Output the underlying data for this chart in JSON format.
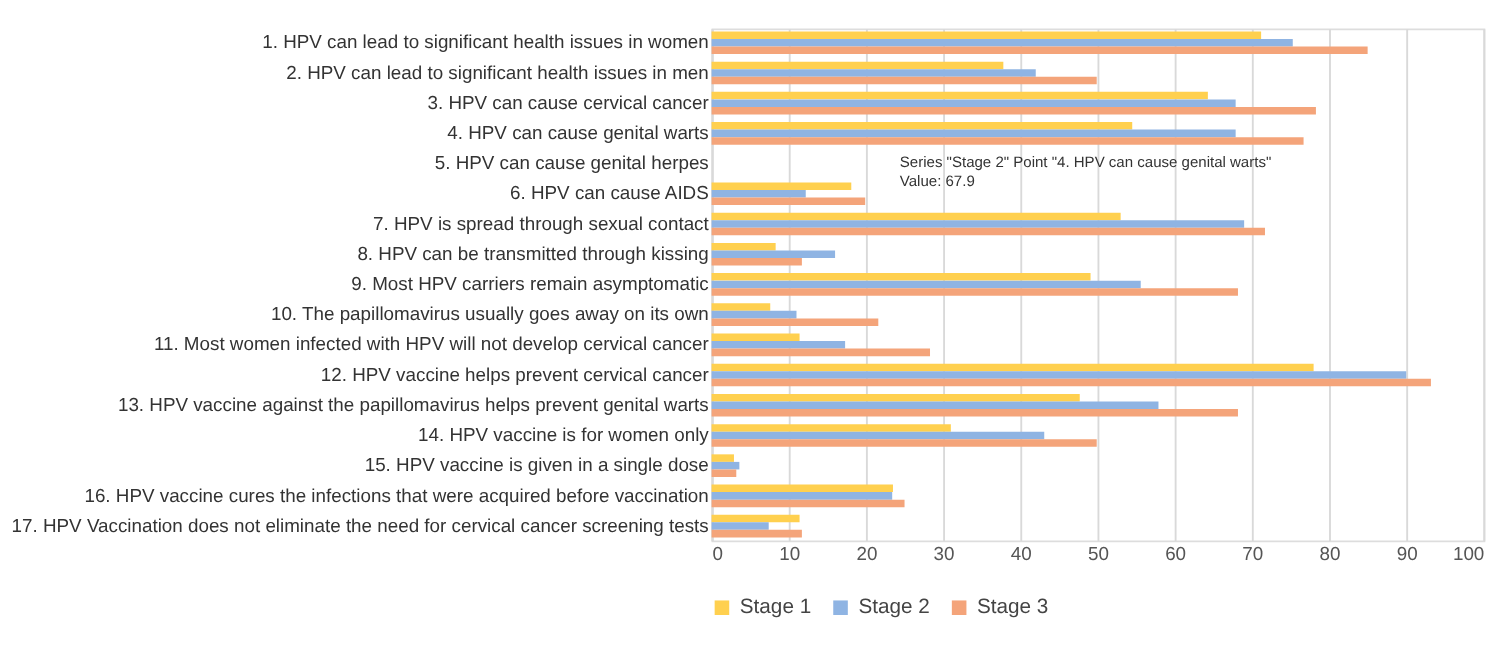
{
  "chart_data": {
    "type": "bar",
    "orientation": "horizontal",
    "categories": [
      "1. HPV can lead to significant health issues in women",
      "2. HPV can lead to significant health issues in men",
      "3. HPV can cause cervical cancer",
      "4. HPV can cause genital warts",
      "5. HPV can cause genital herpes",
      "6. HPV can cause AIDS",
      "7. HPV is spread through sexual contact",
      "8. HPV can be transmitted through kissing",
      "9. Most HPV carriers remain asymptomatic",
      "10. The papillomavirus usually goes away on its own",
      "11. Most women infected with HPV will not develop cervical cancer",
      "12. HPV vaccine helps prevent cervical cancer",
      "13. HPV vaccine against the papillomavirus helps prevent genital warts",
      "14. HPV vaccine is for women only",
      "15. HPV vaccine is given in a single dose",
      "16. HPV vaccine cures the infections that were acquired before vaccination",
      "17. HPV Vaccination does not eliminate the need for cervical cancer screening tests"
    ],
    "series": [
      {
        "name": "Stage 1",
        "color": "#ffd04f",
        "values": [
          71.2,
          37.8,
          64.3,
          54.5,
          null,
          18.1,
          53.0,
          8.3,
          49.1,
          7.6,
          11.4,
          78.0,
          47.7,
          31.0,
          2.9,
          23.5,
          11.4
        ]
      },
      {
        "name": "Stage 2",
        "color": "#8fb4e3",
        "values": [
          75.3,
          42.0,
          67.9,
          67.9,
          null,
          12.2,
          69.0,
          16.0,
          55.6,
          11.0,
          17.3,
          90.0,
          57.9,
          43.1,
          3.6,
          23.4,
          7.4
        ]
      },
      {
        "name": "Stage 3",
        "color": "#f4a47a",
        "values": [
          85.0,
          49.9,
          78.3,
          76.7,
          null,
          19.9,
          71.7,
          11.7,
          68.2,
          21.6,
          28.3,
          93.2,
          68.2,
          49.9,
          3.2,
          25.0,
          11.7
        ]
      }
    ],
    "xlim": [
      0,
      100
    ],
    "xticks": [
      0,
      10,
      20,
      30,
      40,
      50,
      60,
      70,
      80,
      90,
      100
    ],
    "grid": "x",
    "legend": "bottom",
    "annotations": [
      "Series \"Stage 2\" Point \"4. HPV can cause genital warts\"\nValue: 67.9"
    ]
  }
}
